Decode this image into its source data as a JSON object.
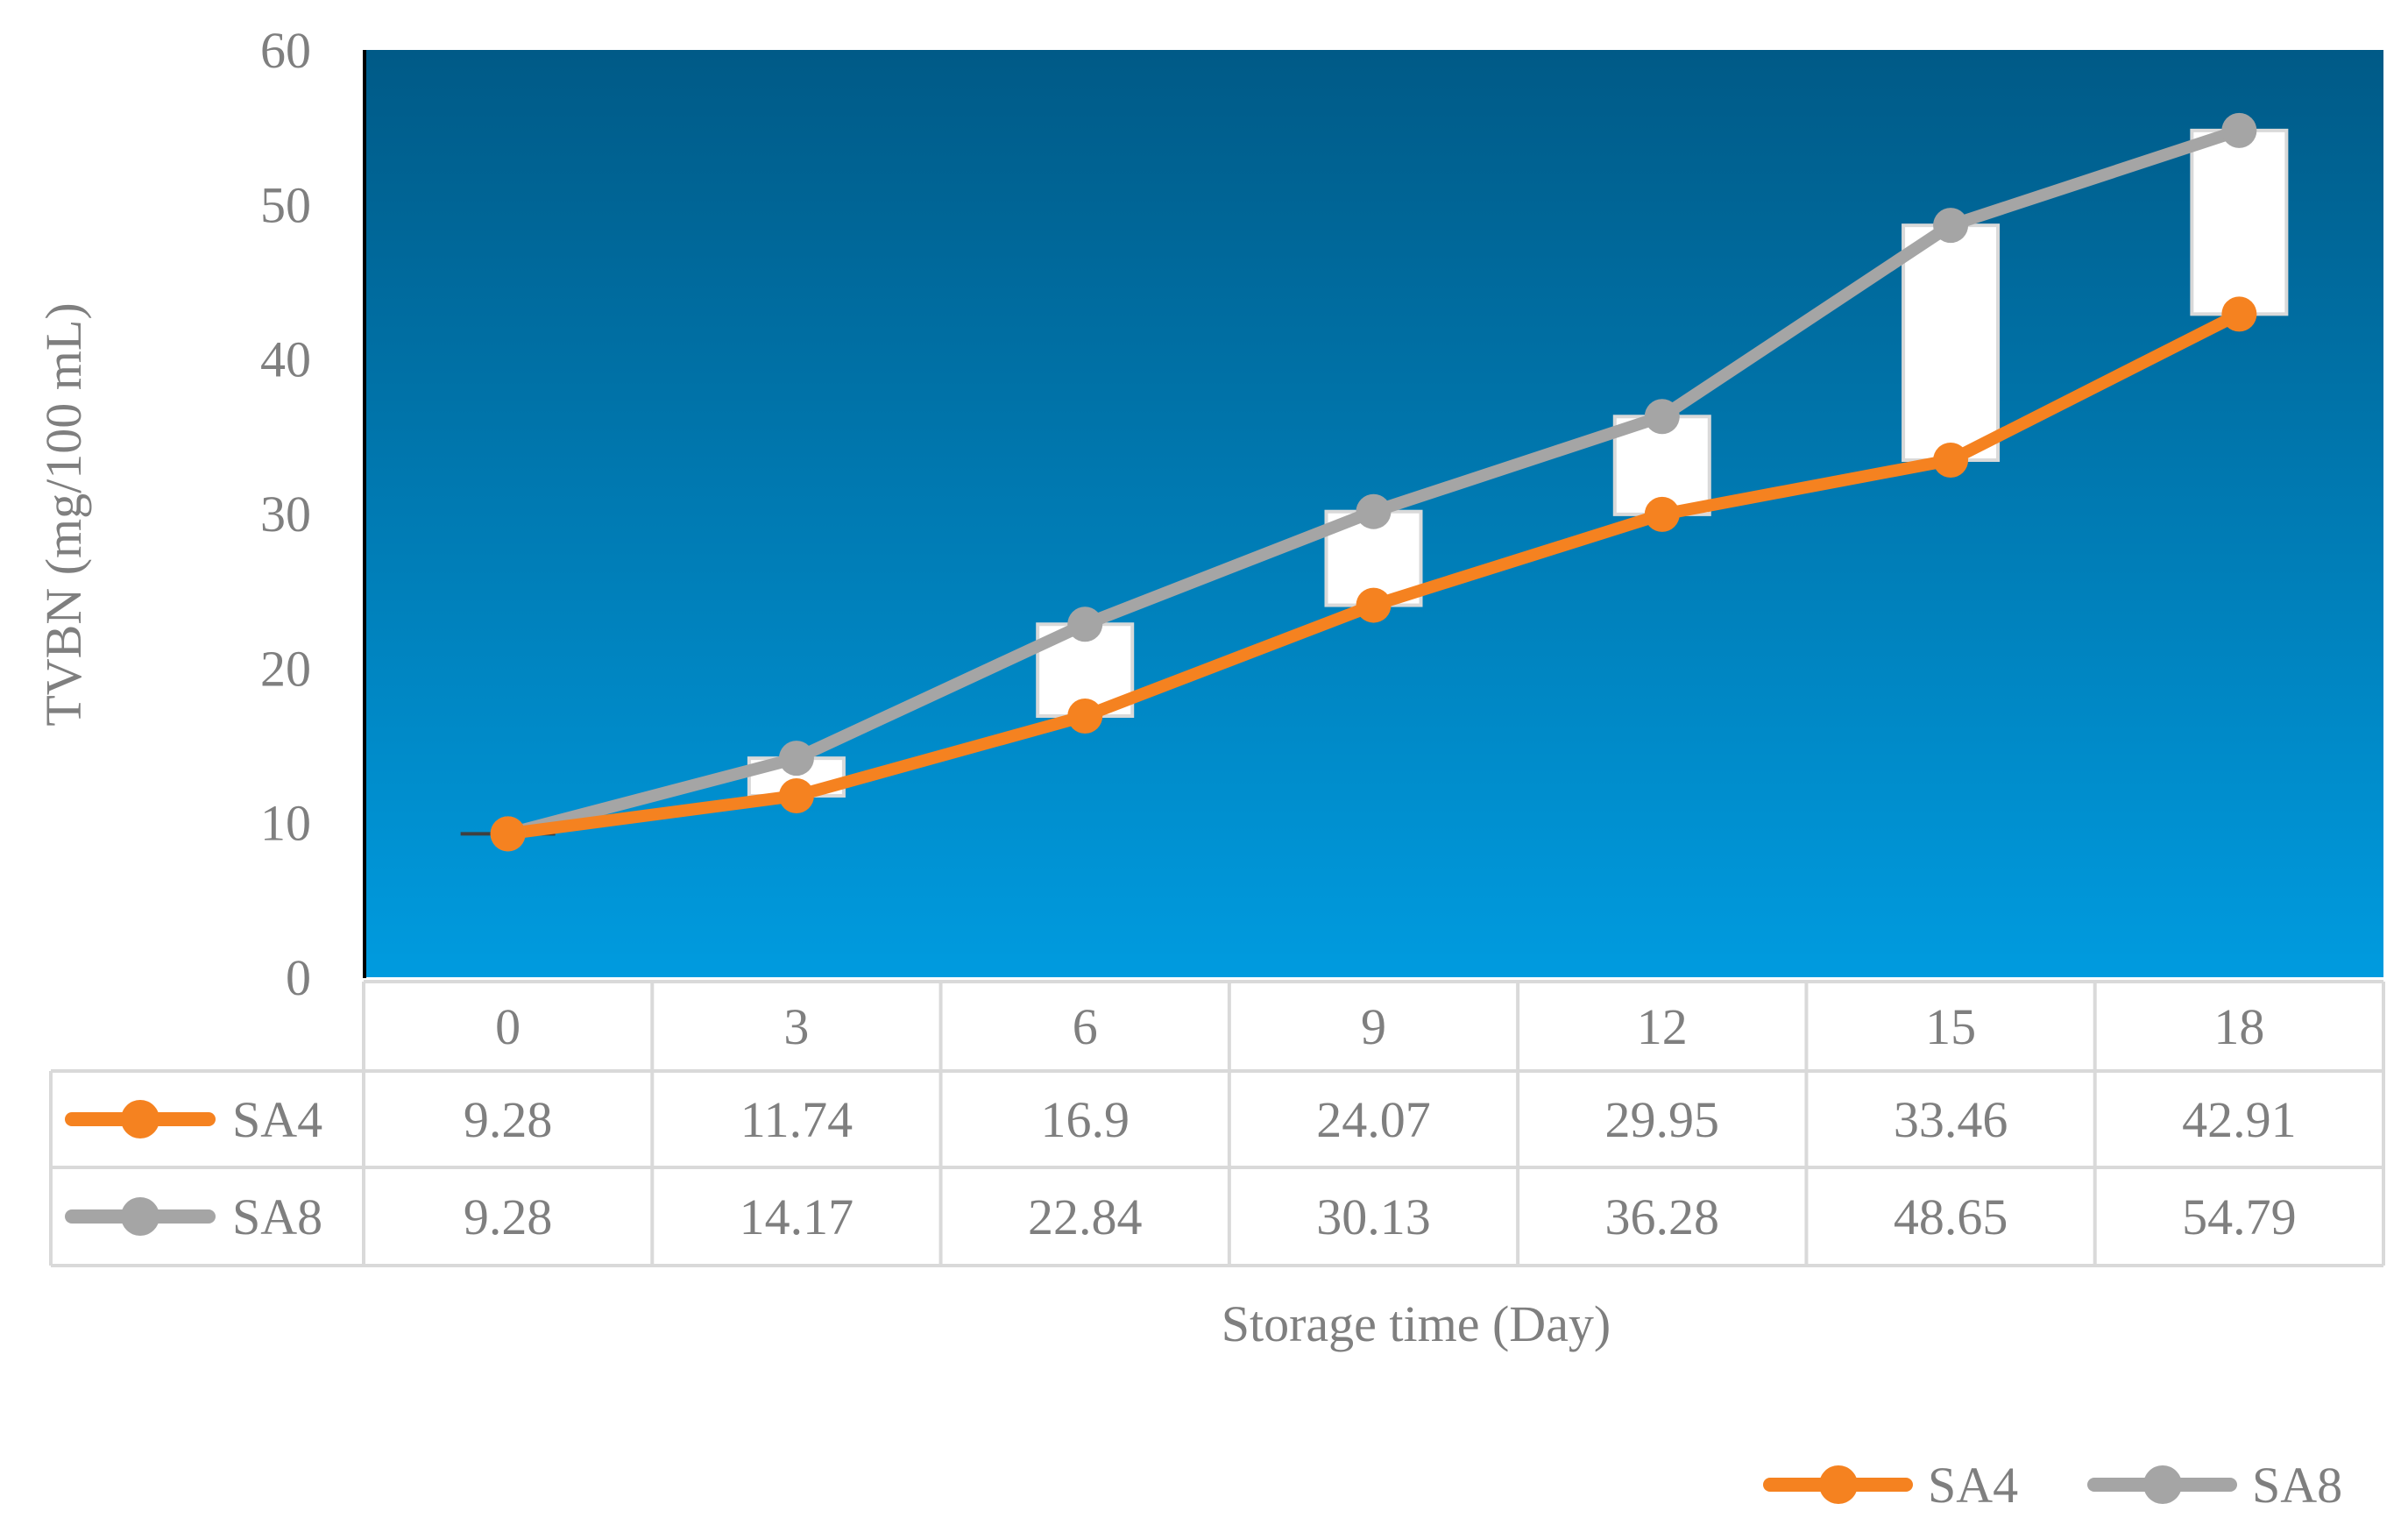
{
  "chart_data": {
    "type": "line",
    "xlabel": "Storage time (Day)",
    "ylabel": "TVBN (mg/100 mL)",
    "ylim": [
      0,
      60
    ],
    "yticks": [
      0,
      10,
      20,
      30,
      40,
      50,
      60
    ],
    "categories": [
      "0",
      "3",
      "6",
      "9",
      "12",
      "15",
      "18"
    ],
    "series": [
      {
        "name": "SA4",
        "color": "#f58220",
        "values": [
          9.28,
          11.74,
          16.9,
          24.07,
          29.95,
          33.46,
          42.91
        ]
      },
      {
        "name": "SA8",
        "color": "#a5a5a5",
        "values": [
          9.28,
          14.17,
          22.84,
          30.13,
          36.28,
          48.65,
          54.79
        ]
      }
    ],
    "data_table": {
      "rows": [
        {
          "name": "SA4",
          "cells": [
            "9.28",
            "11.74",
            "16.9",
            "24.07",
            "29.95",
            "33.46",
            "42.91"
          ]
        },
        {
          "name": "SA8",
          "cells": [
            "9.28",
            "14.17",
            "22.84",
            "30.13",
            "36.28",
            "48.65",
            "54.79"
          ]
        }
      ]
    },
    "up_down_bars": true,
    "legend": {
      "position": "bottom-right",
      "entries": [
        "SA4",
        "SA8"
      ]
    },
    "plot_background": {
      "top": "#005a87",
      "bottom": "#009bdf"
    },
    "grid": false
  }
}
